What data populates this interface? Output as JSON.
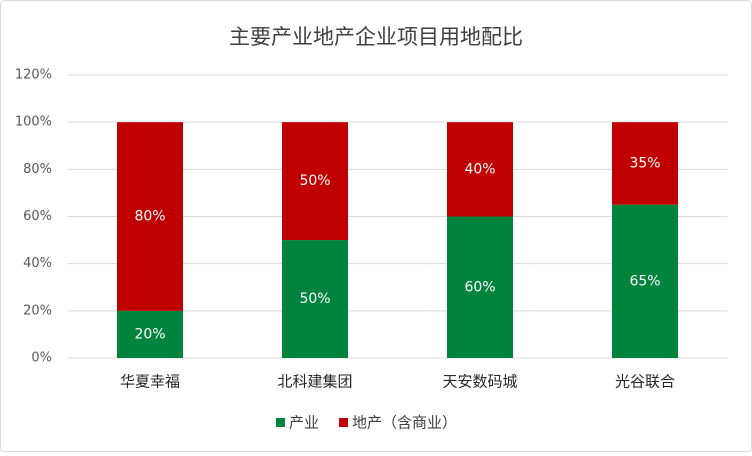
{
  "chart_data": {
    "type": "stacked-bar",
    "title": "主要产业地产企业项目用地配比",
    "categories": [
      "华夏幸福",
      "北科建集团",
      "天安数码城",
      "光谷联合"
    ],
    "series": [
      {
        "name": "产业",
        "color": "#00843d",
        "values": [
          20,
          50,
          60,
          65
        ],
        "value_labels": [
          "20%",
          "50%",
          "60%",
          "65%"
        ]
      },
      {
        "name": "地产（含商业）",
        "color": "#c00000",
        "values": [
          80,
          50,
          40,
          35
        ],
        "value_labels": [
          "80%",
          "50%",
          "40%",
          "35%"
        ]
      }
    ],
    "ylim": [
      0,
      120
    ],
    "yticks": [
      {
        "value": 0,
        "label": "0%"
      },
      {
        "value": 20,
        "label": "20%"
      },
      {
        "value": 40,
        "label": "40%"
      },
      {
        "value": 60,
        "label": "60%"
      },
      {
        "value": 80,
        "label": "80%"
      },
      {
        "value": 100,
        "label": "100%"
      },
      {
        "value": 120,
        "label": "120%"
      }
    ],
    "grid": true,
    "legend": "bottom"
  }
}
